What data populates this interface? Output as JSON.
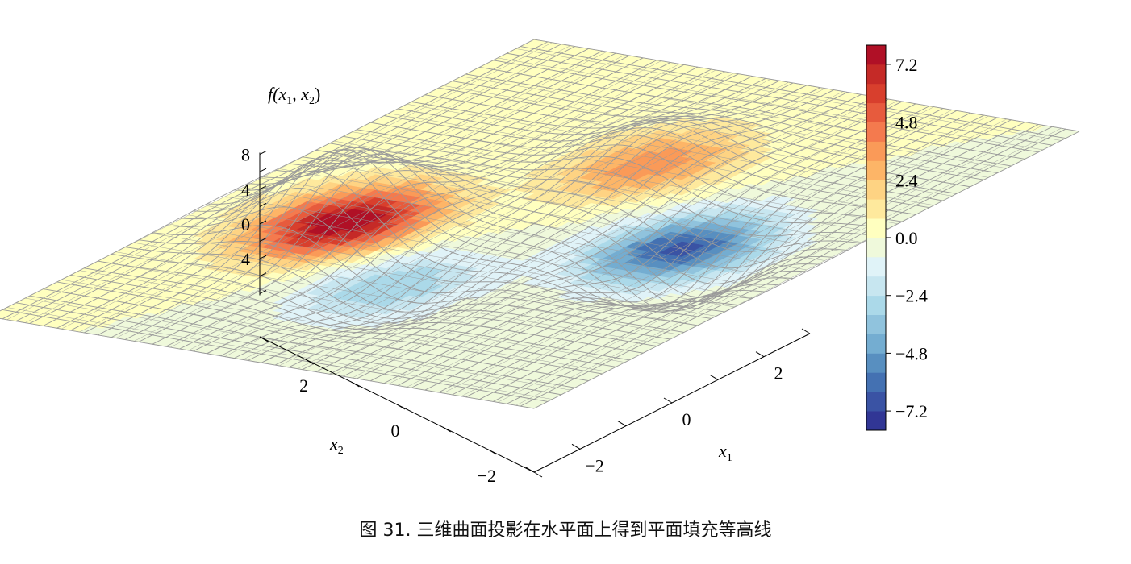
{
  "caption": "图 31. 三维曲面投影在水平面上得到平面填充等高线",
  "chart_data": {
    "type": "surface3d_with_filled_contour",
    "function": "f(x1, x2)",
    "x1_range": [
      -3,
      3
    ],
    "x2_range": [
      -3,
      3
    ],
    "z_range": [
      -8,
      8
    ],
    "surface": {
      "style": "wireframe",
      "color": "#9a9a9a",
      "features": [
        {
          "x1": -0.5,
          "x2": 1.6,
          "value": 8.1,
          "kind": "peak"
        },
        {
          "x1": 0.0,
          "x2": -1.6,
          "value": -6.6,
          "kind": "trough"
        },
        {
          "x1": -1.4,
          "x2": 0.2,
          "value": -3.2,
          "kind": "trough"
        },
        {
          "x1": 1.3,
          "x2": 0.0,
          "value": 3.8,
          "kind": "peak"
        }
      ]
    },
    "z_axis": {
      "label_parts": {
        "f": "f(",
        "x1": "x",
        "sub1": "1",
        "sep": ", ",
        "x2": "x",
        "sub2": "2",
        "close": ")"
      },
      "ticks": [
        "8",
        "4",
        "0",
        "−4"
      ],
      "tick_values": [
        8,
        4,
        0,
        -4
      ]
    },
    "x2_axis": {
      "label": "x",
      "label_sub": "2",
      "ticks": [
        "2",
        "0",
        "−2"
      ],
      "tick_values": [
        2,
        0,
        -2
      ]
    },
    "x1_axis": {
      "label": "x",
      "label_sub": "1",
      "ticks": [
        "−2",
        "0",
        "2"
      ],
      "tick_values": [
        -2,
        0,
        2
      ]
    },
    "colorbar": {
      "colormap": "RdYlBu_r",
      "levels": [
        -8.0,
        -7.2,
        -6.4,
        -5.6,
        -4.8,
        -4.0,
        -3.2,
        -2.4,
        -1.6,
        -0.8,
        0.0,
        0.8,
        1.6,
        2.4,
        3.2,
        4.0,
        4.8,
        5.6,
        6.4,
        7.2,
        8.0
      ],
      "colors": [
        "#313695",
        "#3a53a4",
        "#4471b2",
        "#588fc0",
        "#74add1",
        "#90c3dd",
        "#abd9e9",
        "#c7e6f0",
        "#e0f3f8",
        "#eff9db",
        "#ffffbf",
        "#fee99d",
        "#fed383",
        "#fdb567",
        "#fa9a58",
        "#f47a4e",
        "#e75b3d",
        "#d83f2d",
        "#c52a27",
        "#b01026"
      ],
      "tick_labels": [
        "7.2",
        "4.8",
        "2.4",
        "0.0",
        "−2.4",
        "−4.8",
        "−7.2"
      ],
      "tick_values": [
        7.2,
        4.8,
        2.4,
        0.0,
        -2.4,
        -4.8,
        -7.2
      ]
    },
    "grid": false
  }
}
